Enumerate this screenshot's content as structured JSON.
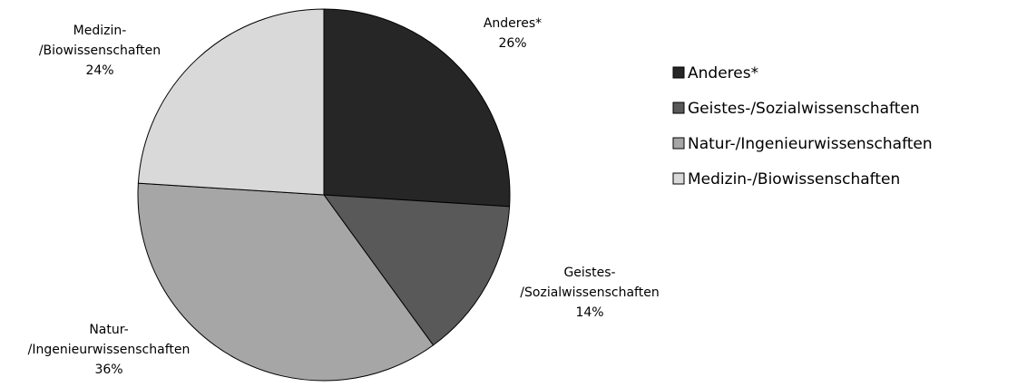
{
  "chart_data": {
    "type": "pie",
    "categories": [
      "Anderes*",
      "Geistes-/Sozialwissenschaften",
      "Natur-/Ingenieurwissenschaften",
      "Medizin-/Biowissenschaften"
    ],
    "values": [
      26,
      14,
      36,
      24
    ],
    "value_labels": [
      "26%",
      "14%",
      "36%",
      "24%"
    ],
    "colors": [
      "#262626",
      "#595959",
      "#a6a6a6",
      "#d9d9d9"
    ],
    "legend": "right"
  }
}
